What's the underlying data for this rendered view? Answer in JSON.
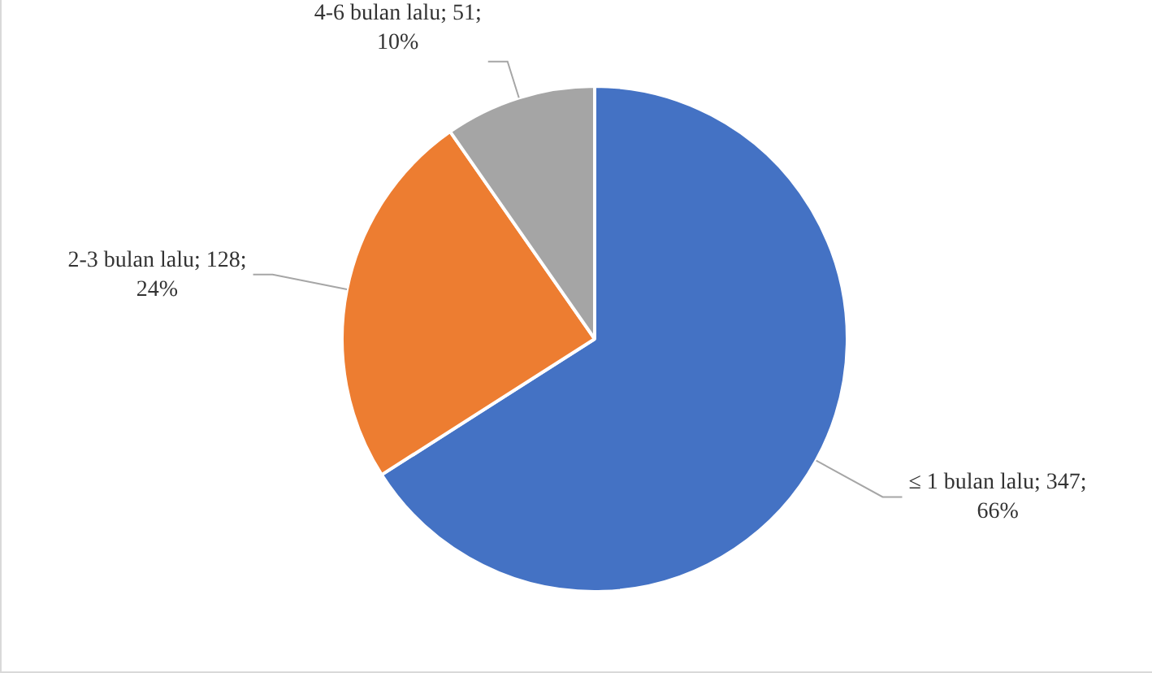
{
  "chart_data": {
    "type": "pie",
    "categories": [
      "≤ 1 bulan lalu",
      "2-3 bulan lalu",
      "4-6 bulan lalu"
    ],
    "values": [
      347,
      128,
      51
    ],
    "colors": [
      "#4472c4",
      "#ed7d31",
      "#a5a5a5"
    ],
    "value_labels": [
      "347; 66%",
      "128; 24%",
      "51; 10%"
    ],
    "legend": false
  }
}
